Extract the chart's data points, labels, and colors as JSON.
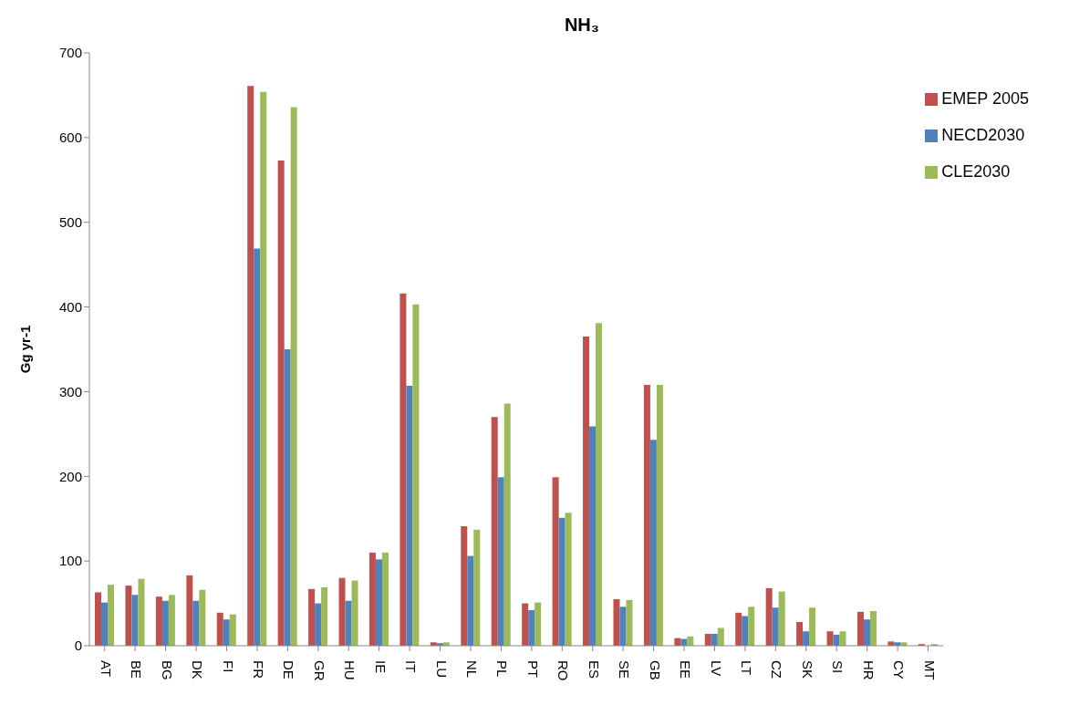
{
  "chart_data": {
    "type": "bar",
    "title": "NH₃",
    "ylabel": "Gg yr-1",
    "categories": [
      "AT",
      "BE",
      "BG",
      "DK",
      "FI",
      "FR",
      "DE",
      "GR",
      "HU",
      "IE",
      "IT",
      "LU",
      "NL",
      "PL",
      "PT",
      "RO",
      "ES",
      "SE",
      "GB",
      "EE",
      "LV",
      "LT",
      "CZ",
      "SK",
      "SI",
      "HR",
      "CY",
      "MT"
    ],
    "series": [
      {
        "name": "EMEP 2005",
        "color": "#c0504d",
        "values": [
          63,
          71,
          58,
          83,
          39,
          661,
          573,
          67,
          80,
          110,
          416,
          4,
          141,
          270,
          50,
          199,
          365,
          55,
          308,
          9,
          14,
          39,
          68,
          28,
          17,
          40,
          5,
          2
        ]
      },
      {
        "name": "NECD2030",
        "color": "#4f81bd",
        "values": [
          51,
          60,
          53,
          53,
          31,
          469,
          350,
          50,
          53,
          102,
          307,
          3,
          106,
          199,
          42,
          151,
          259,
          46,
          243,
          8,
          14,
          35,
          45,
          17,
          13,
          31,
          4,
          null
        ]
      },
      {
        "name": "CLE2030",
        "color": "#9bbb59",
        "values": [
          72,
          79,
          60,
          66,
          37,
          654,
          636,
          69,
          77,
          110,
          403,
          4,
          137,
          286,
          51,
          157,
          381,
          54,
          308,
          11,
          21,
          46,
          64,
          45,
          17,
          41,
          4,
          2
        ]
      }
    ],
    "ylim": [
      0,
      700
    ],
    "yticks": [
      0,
      100,
      200,
      300,
      400,
      500,
      600,
      700
    ],
    "grid": false,
    "legend": "top right"
  }
}
